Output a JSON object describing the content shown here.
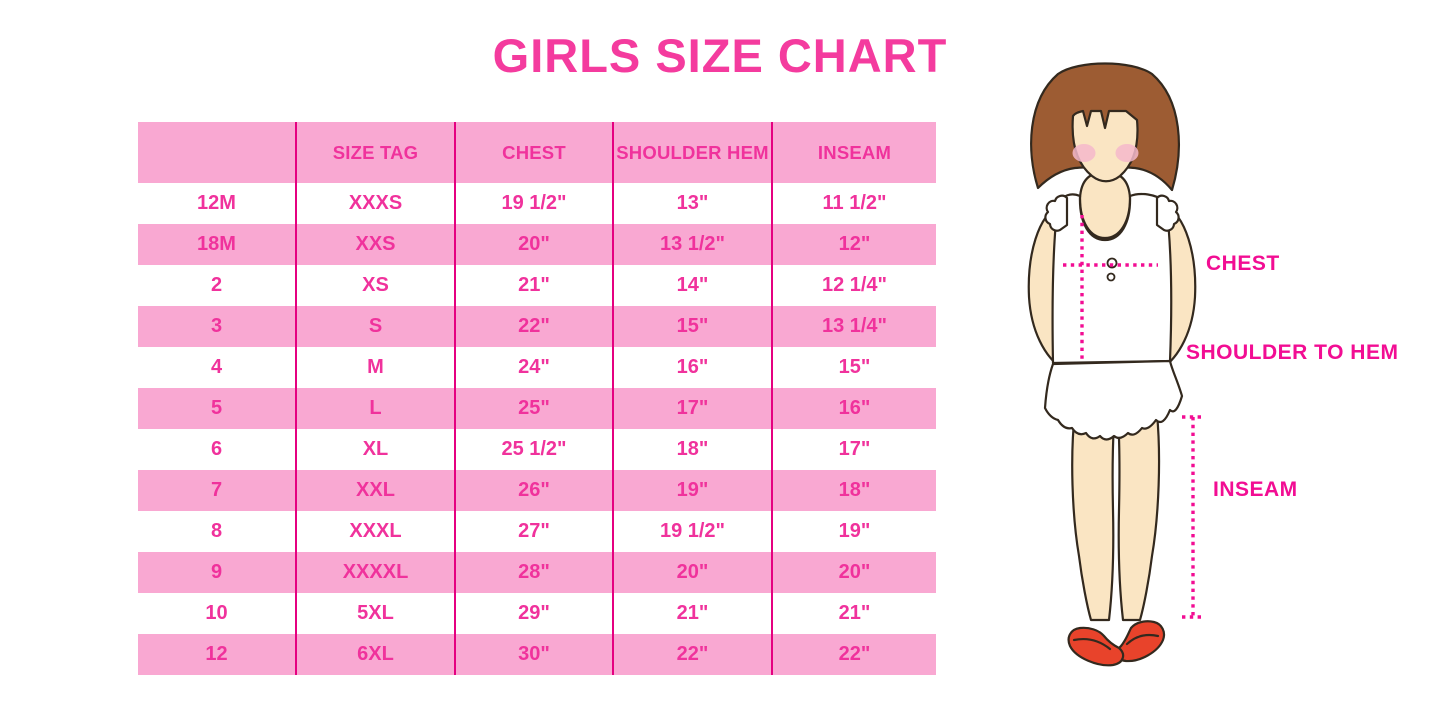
{
  "title": "GIRLS SIZE CHART",
  "chart_data": {
    "type": "table",
    "title": "GIRLS SIZE CHART",
    "columns": [
      "",
      "SIZE TAG",
      "CHEST",
      "SHOULDER HEM",
      "INSEAM"
    ],
    "rows": [
      [
        "12M",
        "XXXS",
        "19 1/2\"",
        "13\"",
        "11 1/2\""
      ],
      [
        "18M",
        "XXS",
        "20\"",
        "13 1/2\"",
        "12\""
      ],
      [
        "2",
        "XS",
        "21\"",
        "14\"",
        "12 1/4\""
      ],
      [
        "3",
        "S",
        "22\"",
        "15\"",
        "13 1/4\""
      ],
      [
        "4",
        "M",
        "24\"",
        "16\"",
        "15\""
      ],
      [
        "5",
        "L",
        "25\"",
        "17\"",
        "16\""
      ],
      [
        "6",
        "XL",
        "25 1/2\"",
        "18\"",
        "17\""
      ],
      [
        "7",
        "XXL",
        "26\"",
        "19\"",
        "18\""
      ],
      [
        "8",
        "XXXL",
        "27\"",
        "19 1/2\"",
        "19\""
      ],
      [
        "9",
        "XXXXL",
        "28\"",
        "20\"",
        "20\""
      ],
      [
        "10",
        "5XL",
        "29\"",
        "21\"",
        "21\""
      ],
      [
        "12",
        "6XL",
        "30\"",
        "22\"",
        "22\""
      ]
    ]
  },
  "figure": {
    "labels": {
      "chest": "CHEST",
      "shoulder_to_hem": "SHOULDER TO HEM",
      "inseam": "INSEAM"
    }
  },
  "colors": {
    "row_pink": "#F9A8D2",
    "grid_line_magenta": "#E50080",
    "table_text_pink": "#F0329C",
    "title_pink": "#F43B9E",
    "measure_label_pink": "#F20D93",
    "hair_brown": "#9D5C33",
    "skin": "#FAE5C3",
    "cheek_pink": "#F4B9CB",
    "shoe_red": "#E8432B"
  }
}
